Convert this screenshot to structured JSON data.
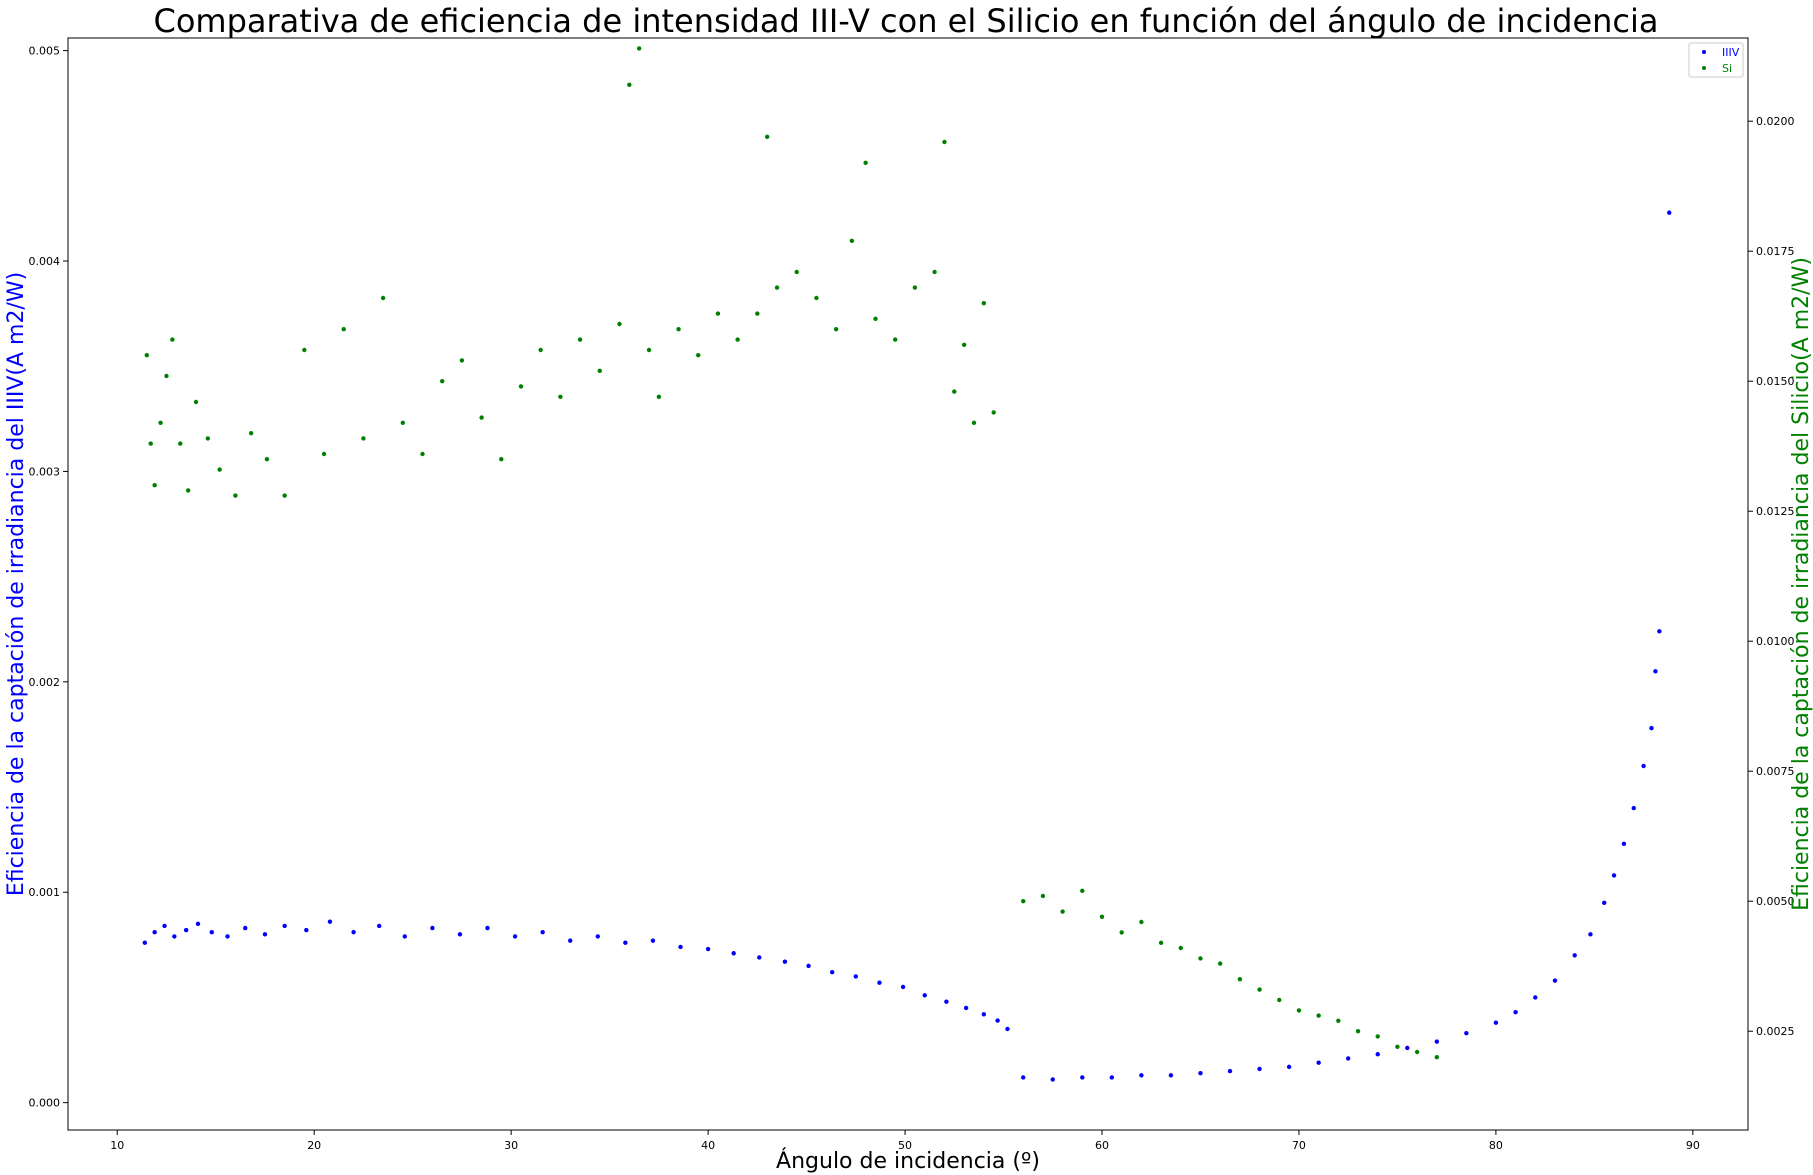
{
  "chart_data": {
    "type": "scatter",
    "title": "Comparativa de eficiencia de intensidad III-V con el Silicio en función del ángulo de incidencia",
    "xlabel": "Ángulo de incidencia (º)",
    "ylabel_left": "Eficiencia de la captación de irradiancia del IIIV(A m2/W)",
    "ylabel_right": "Eficiencia de la captación de irradiancia del Silicio(A m2/W)",
    "xlim": [
      7.5,
      92.8
    ],
    "ylim_left": [
      -0.00013,
      0.00506
    ],
    "ylim_right": [
      0.0006,
      0.0216
    ],
    "xticks": [
      "10",
      "20",
      "30",
      "40",
      "50",
      "60",
      "70",
      "80",
      "90"
    ],
    "yticks_left": [
      "0.000",
      "0.001",
      "0.002",
      "0.003",
      "0.004",
      "0.005"
    ],
    "yticks_right": [
      "0.0025",
      "0.0050",
      "0.0075",
      "0.0100",
      "0.0125",
      "0.0150",
      "0.0175",
      "0.0200"
    ],
    "legend_position": "top-right",
    "colors": {
      "IIIV": "#0000ff",
      "Si": "#008000"
    },
    "series": [
      {
        "name": "IIIV",
        "axis": "left",
        "x": [
          11.4,
          11.9,
          12.4,
          12.9,
          13.5,
          14.1,
          14.8,
          15.6,
          16.5,
          17.5,
          18.5,
          19.6,
          20.8,
          22.0,
          23.3,
          24.6,
          26.0,
          27.4,
          28.8,
          30.2,
          31.6,
          33.0,
          34.4,
          35.8,
          37.2,
          38.6,
          40.0,
          41.3,
          42.6,
          43.9,
          45.1,
          46.3,
          47.5,
          48.7,
          49.9,
          51.0,
          52.1,
          53.1,
          54.0,
          54.7,
          55.2,
          56.0,
          57.5,
          59.0,
          60.5,
          62.0,
          63.5,
          65.0,
          66.5,
          68.0,
          69.5,
          71.0,
          72.5,
          74.0,
          75.5,
          77.0,
          78.5,
          80.0,
          81.0,
          82.0,
          83.0,
          84.0,
          84.8,
          85.5,
          86.0,
          86.5,
          87.0,
          87.5,
          87.9,
          88.1,
          88.3,
          88.8
        ],
        "y": [
          0.00076,
          0.00081,
          0.00084,
          0.00079,
          0.00082,
          0.00085,
          0.00081,
          0.00079,
          0.00083,
          0.0008,
          0.00084,
          0.00082,
          0.00086,
          0.00081,
          0.00084,
          0.00079,
          0.00083,
          0.0008,
          0.00083,
          0.00079,
          0.00081,
          0.00077,
          0.00079,
          0.00076,
          0.00077,
          0.00074,
          0.00073,
          0.00071,
          0.00069,
          0.00067,
          0.00065,
          0.00062,
          0.0006,
          0.00057,
          0.00055,
          0.00051,
          0.00048,
          0.00045,
          0.00042,
          0.00039,
          0.00035,
          0.00012,
          0.00011,
          0.00012,
          0.00012,
          0.00013,
          0.00013,
          0.00014,
          0.00015,
          0.00016,
          0.00017,
          0.00019,
          0.00021,
          0.00023,
          0.00026,
          0.00029,
          0.00033,
          0.00038,
          0.00043,
          0.0005,
          0.00058,
          0.0007,
          0.0008,
          0.00095,
          0.00108,
          0.00123,
          0.0014,
          0.0016,
          0.00178,
          0.00205,
          0.00224,
          0.00423
        ]
      },
      {
        "name": "Si",
        "axis": "right",
        "x": [
          11.5,
          11.7,
          11.9,
          12.2,
          12.5,
          12.8,
          13.2,
          13.6,
          14.0,
          14.6,
          15.2,
          16.0,
          16.8,
          17.6,
          18.5,
          19.5,
          20.5,
          21.5,
          22.5,
          23.5,
          24.5,
          25.5,
          26.5,
          27.5,
          28.5,
          29.5,
          30.5,
          31.5,
          32.5,
          33.5,
          34.5,
          35.5,
          36.0,
          36.5,
          37.0,
          37.5,
          38.5,
          39.5,
          40.5,
          41.5,
          42.5,
          43.0,
          43.5,
          44.5,
          45.5,
          46.5,
          47.3,
          48.0,
          48.5,
          49.5,
          50.5,
          51.5,
          52.0,
          52.5,
          53.0,
          53.5,
          54.0,
          54.5,
          56.0,
          57.0,
          58.0,
          59.0,
          60.0,
          61.0,
          62.0,
          63.0,
          64.0,
          65.0,
          66.0,
          67.0,
          68.0,
          69.0,
          70.0,
          71.0,
          72.0,
          73.0,
          74.0,
          75.0,
          76.0,
          77.0
        ],
        "y": [
          0.0155,
          0.0138,
          0.013,
          0.0142,
          0.0151,
          0.0158,
          0.0138,
          0.0129,
          0.0146,
          0.0139,
          0.0133,
          0.0128,
          0.014,
          0.0135,
          0.0128,
          0.0156,
          0.0136,
          0.016,
          0.0139,
          0.0166,
          0.0142,
          0.0136,
          0.015,
          0.0154,
          0.0143,
          0.0135,
          0.0149,
          0.0156,
          0.0147,
          0.0158,
          0.0152,
          0.0161,
          0.0207,
          0.0214,
          0.0156,
          0.0147,
          0.016,
          0.0155,
          0.0163,
          0.0158,
          0.0163,
          0.0197,
          0.0168,
          0.0171,
          0.0166,
          0.016,
          0.0177,
          0.0192,
          0.0162,
          0.0158,
          0.0168,
          0.0171,
          0.0196,
          0.0148,
          0.0157,
          0.0142,
          0.0165,
          0.0144,
          0.005,
          0.0051,
          0.0048,
          0.0052,
          0.0047,
          0.0044,
          0.0046,
          0.0042,
          0.0041,
          0.0039,
          0.0038,
          0.0035,
          0.0033,
          0.0031,
          0.0029,
          0.0028,
          0.0027,
          0.0025,
          0.0024,
          0.0022,
          0.0021,
          0.002
        ]
      }
    ]
  }
}
